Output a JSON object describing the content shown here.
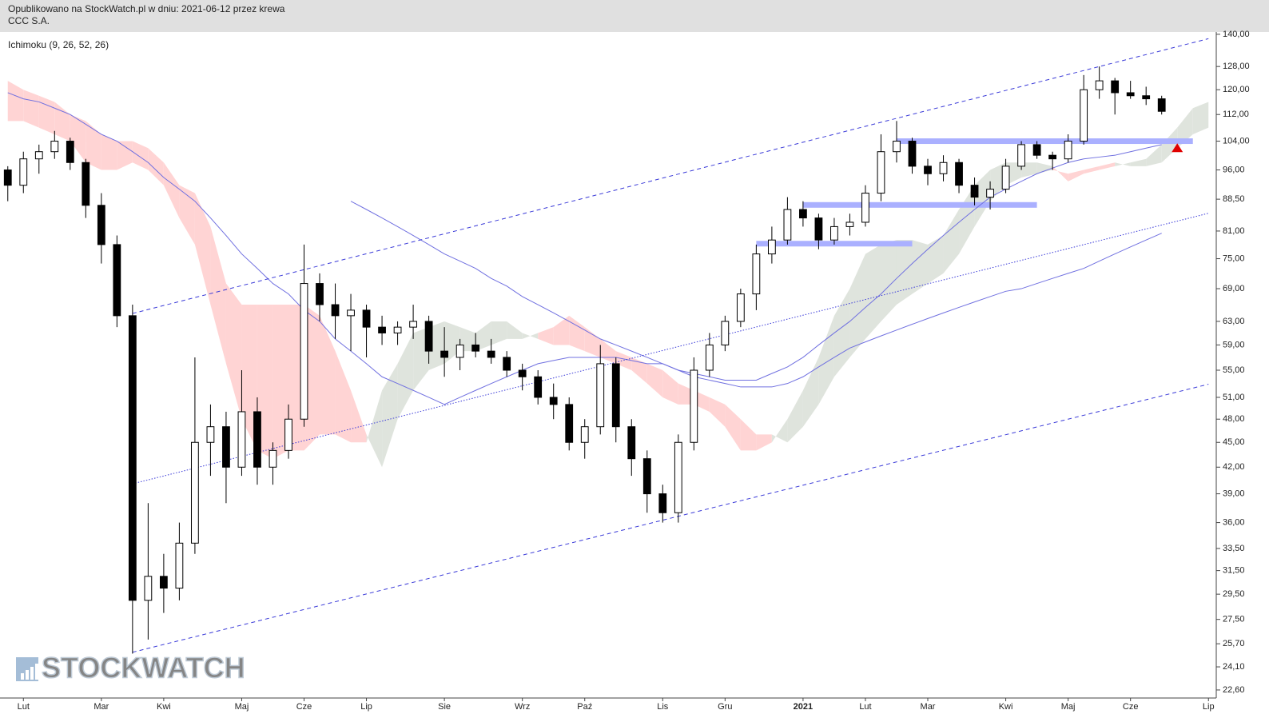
{
  "header": {
    "line1": "Opublikowano na StockWatch.pl w dniu: 2021-06-12 przez krewa",
    "line2": "CCC S.A."
  },
  "chart_data": {
    "type": "candlestick",
    "indicator_label": "Ichimoku (9, 26, 52, 26)",
    "watermark": "STOCKWATCH",
    "categories": [
      null,
      "Lut",
      null,
      null,
      null,
      null,
      "Mar",
      null,
      null,
      null,
      "Kwi",
      null,
      null,
      null,
      null,
      "Maj",
      null,
      null,
      null,
      "Cze",
      null,
      null,
      null,
      "Lip",
      null,
      null,
      null,
      null,
      "Sie",
      null,
      null,
      null,
      null,
      "Wrz",
      null,
      null,
      null,
      "Paź",
      null,
      null,
      null,
      null,
      "Lis",
      null,
      null,
      null,
      "Gru",
      null,
      null,
      null,
      null,
      "2021",
      null,
      null,
      null,
      "Lut",
      null,
      null,
      null,
      "Mar",
      null,
      null,
      null,
      null,
      "Kwi",
      null,
      null,
      null,
      "Maj",
      null,
      null,
      null,
      "Cze",
      null,
      null,
      null,
      null,
      "Lip"
    ],
    "open": [
      96,
      92,
      99,
      101,
      104,
      98,
      87,
      78,
      64,
      29,
      31,
      30,
      34,
      45,
      47,
      42,
      49,
      42,
      44,
      48,
      70,
      66,
      64,
      65,
      62,
      61,
      62,
      63,
      58,
      57,
      59,
      58,
      57,
      55,
      54,
      51,
      50,
      45,
      47,
      56,
      47,
      43,
      39,
      37,
      45,
      55,
      59,
      63,
      68,
      76,
      79,
      86,
      84,
      79,
      82,
      83,
      90,
      101,
      104,
      97,
      95,
      98,
      92,
      89,
      91,
      97,
      103,
      100,
      99,
      104,
      120,
      123,
      119,
      118,
      117,
      null,
      null,
      null
    ],
    "high": [
      97,
      101,
      103,
      107,
      105,
      99,
      90,
      80,
      66,
      38,
      33,
      36,
      57,
      50,
      49,
      55,
      51,
      45,
      50,
      78,
      72,
      70,
      68,
      66,
      64,
      63,
      66,
      64,
      62,
      60,
      61,
      60,
      58,
      56,
      55,
      53,
      51,
      48,
      59,
      57,
      48,
      44,
      40,
      46,
      57,
      61,
      64,
      69,
      78,
      82,
      89,
      88,
      85,
      84,
      85,
      92,
      106,
      110,
      105,
      99,
      100,
      99,
      94,
      93,
      99,
      104,
      104,
      101,
      106,
      125,
      128,
      124,
      123,
      121,
      118,
      null,
      null,
      null
    ],
    "low": [
      88,
      90,
      95,
      99,
      96,
      84,
      74,
      62,
      25,
      26,
      28,
      29,
      33,
      41,
      38,
      41,
      40,
      40,
      43,
      47,
      63,
      60,
      58,
      57,
      59,
      59,
      60,
      56,
      54,
      55,
      57,
      56,
      54,
      52,
      50,
      48,
      44,
      43,
      46,
      45,
      41,
      37,
      36,
      36,
      44,
      54,
      58,
      62,
      65,
      74,
      78,
      82,
      77,
      78,
      80,
      82,
      88,
      98,
      95,
      92,
      93,
      90,
      87,
      86,
      90,
      96,
      99,
      96,
      98,
      103,
      117,
      112,
      117,
      115,
      112,
      null,
      null,
      null
    ],
    "close": [
      92,
      99,
      101,
      104,
      98,
      87,
      78,
      64,
      29,
      31,
      30,
      34,
      45,
      47,
      42,
      49,
      42,
      44,
      48,
      70,
      66,
      64,
      65,
      62,
      61,
      62,
      63,
      58,
      57,
      59,
      58,
      57,
      55,
      54,
      51,
      50,
      45,
      47,
      56,
      47,
      43,
      39,
      37,
      45,
      55,
      59,
      63,
      68,
      76,
      79,
      86,
      84,
      79,
      82,
      83,
      90,
      101,
      104,
      97,
      95,
      98,
      92,
      89,
      91,
      97,
      103,
      100,
      99,
      104,
      120,
      123,
      119,
      118,
      117,
      113,
      null,
      null,
      null
    ],
    "up_color": "#ffffff",
    "down_color": "#000000",
    "cloud": {
      "bull_color": "#dfe4dd",
      "bear_color": "#ffd4d4",
      "span_a": [
        110,
        110,
        108,
        106,
        104,
        98,
        96,
        96,
        98,
        96,
        92,
        84,
        78,
        66,
        56,
        48,
        44,
        43,
        44,
        44,
        46,
        46,
        45,
        45,
        52,
        56,
        61,
        62,
        63,
        62,
        61,
        63,
        63,
        61,
        60,
        59,
        59,
        58,
        57,
        56,
        55,
        53,
        51,
        50,
        50,
        49,
        47,
        44,
        44,
        45,
        48,
        52,
        57,
        64,
        69,
        76,
        78,
        79,
        79,
        78,
        80,
        86,
        92,
        96,
        98,
        98,
        98,
        97,
        93,
        95,
        96,
        97,
        98,
        99,
        103,
        108,
        114,
        116
      ],
      "span_b": [
        123,
        120,
        118,
        116,
        112,
        110,
        106,
        104,
        104,
        102,
        98,
        92,
        90,
        82,
        70,
        66,
        66,
        66,
        66,
        66,
        64,
        58,
        52,
        46,
        42,
        48,
        52,
        55,
        56,
        58,
        58,
        59,
        60,
        60,
        61,
        62,
        64,
        62,
        60,
        58,
        57,
        56,
        55,
        53,
        52,
        51,
        50,
        48,
        46,
        46,
        45,
        47,
        50,
        54,
        57,
        60,
        63,
        66,
        68,
        70,
        72,
        76,
        82,
        88,
        92,
        94,
        95,
        96,
        95,
        96,
        97,
        98,
        97,
        97,
        98,
        102,
        106,
        108
      ]
    },
    "lines": [
      {
        "color": "#7070e0",
        "values": [
          119,
          117,
          116,
          114,
          112,
          109,
          106,
          104,
          101,
          98,
          94,
          91,
          88,
          84,
          80,
          76,
          73,
          70,
          68,
          65,
          63,
          60,
          58,
          56,
          54,
          53,
          52,
          51,
          50,
          51,
          52,
          53,
          54,
          55,
          56,
          56.5,
          57,
          57,
          57,
          57,
          56.5,
          56,
          56,
          55,
          54.5,
          54,
          53.5,
          53.5,
          53.5,
          54.5,
          55.5,
          57,
          59,
          61,
          63,
          65.5,
          68,
          71,
          74,
          77,
          80,
          83,
          86,
          89,
          91,
          93,
          95,
          96.5,
          98,
          99,
          99.5,
          100,
          101,
          102,
          103,
          null,
          null,
          null
        ]
      },
      {
        "color": "#7070e0",
        "values": [
          null,
          null,
          null,
          null,
          null,
          null,
          null,
          null,
          null,
          null,
          null,
          null,
          null,
          null,
          null,
          null,
          null,
          null,
          null,
          null,
          null,
          null,
          88,
          86,
          84,
          82,
          80,
          78,
          76,
          74.5,
          73,
          71,
          69.5,
          67.5,
          66,
          64.5,
          63,
          61.5,
          60,
          59,
          58,
          57,
          56,
          55,
          54,
          53.5,
          53,
          52.5,
          52.5,
          52.5,
          53,
          54,
          55.5,
          57,
          58.5,
          59.5,
          60.5,
          61.5,
          62.5,
          63.5,
          64.5,
          65.5,
          66.5,
          67.5,
          68.5,
          69,
          70,
          71,
          72,
          73,
          74.5,
          76,
          77.5,
          79,
          80.5,
          null,
          null,
          null
        ]
      }
    ],
    "trendlines": [
      {
        "from": [
          8,
          64.4
        ],
        "to": [
          77,
          138.3
        ],
        "color": "#3a3ad8",
        "style": "dashed"
      },
      {
        "from": [
          8,
          25.1
        ],
        "to": [
          77,
          52.9
        ],
        "color": "#3a3ad8",
        "style": "dashed"
      },
      {
        "from": [
          8,
          40.1
        ],
        "to": [
          77,
          85.1
        ],
        "color": "#3a3ad8",
        "style": "dotted"
      }
    ],
    "zones": [
      {
        "value": 104,
        "from": 57,
        "to": 76,
        "color": "#aab0ff"
      },
      {
        "value": 87.1,
        "from": 51,
        "to": 66,
        "color": "#aab0ff"
      },
      {
        "value": 78.2,
        "from": 48,
        "to": 58,
        "color": "#aab0ff"
      }
    ],
    "marker": {
      "index": 75,
      "value": 102,
      "color": "#e00000"
    },
    "log_scale": true,
    "ylim": [
      22.1,
      140.9
    ],
    "yticks": [
      {
        "value": 140,
        "label": "140,00"
      },
      {
        "value": 128,
        "label": "128,00"
      },
      {
        "value": 120,
        "label": "120,00"
      },
      {
        "value": 112,
        "label": "112,00"
      },
      {
        "value": 104,
        "label": "104,00"
      },
      {
        "value": 96,
        "label": "96,00"
      },
      {
        "value": 88.5,
        "label": "88,50"
      },
      {
        "value": 81,
        "label": "81,00"
      },
      {
        "value": 75,
        "label": "75,00"
      },
      {
        "value": 69,
        "label": "69,00"
      },
      {
        "value": 63,
        "label": "63,00"
      },
      {
        "value": 59,
        "label": "59,00"
      },
      {
        "value": 55,
        "label": "55,00"
      },
      {
        "value": 51,
        "label": "51,00"
      },
      {
        "value": 48,
        "label": "48,00"
      },
      {
        "value": 45,
        "label": "45,00"
      },
      {
        "value": 42,
        "label": "42,00"
      },
      {
        "value": 39,
        "label": "39,00"
      },
      {
        "value": 36,
        "label": "36,00"
      },
      {
        "value": 33.5,
        "label": "33,50"
      },
      {
        "value": 31.5,
        "label": "31,50"
      },
      {
        "value": 29.5,
        "label": "29,50"
      },
      {
        "value": 27.5,
        "label": "27,50"
      },
      {
        "value": 25.7,
        "label": "25,70"
      },
      {
        "value": 24.1,
        "label": "24,10"
      },
      {
        "value": 22.6,
        "label": "22,60"
      }
    ]
  }
}
